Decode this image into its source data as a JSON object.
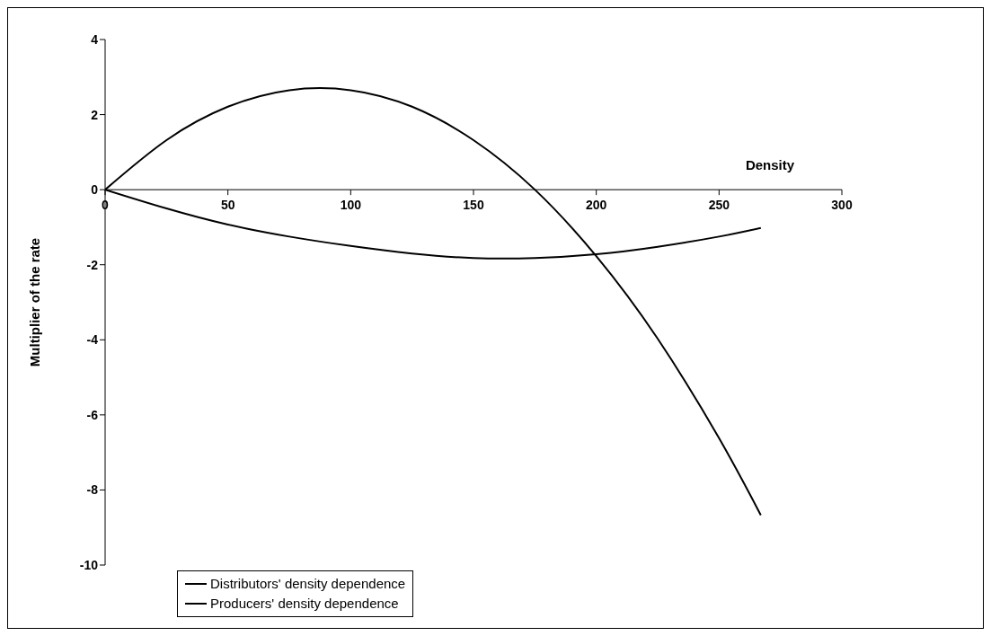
{
  "chart_data": {
    "type": "line",
    "xlabel": "Density",
    "ylabel": "Multiplier of the rate",
    "xlim": [
      0,
      300
    ],
    "xticks": [
      0,
      50,
      100,
      150,
      200,
      250,
      300
    ],
    "ylim": [
      -10,
      4
    ],
    "yticks": [
      -10,
      -8,
      -6,
      -4,
      -2,
      0,
      2,
      4
    ],
    "grid": false,
    "legend": "bottom left",
    "marker": "none",
    "line_style": "solid",
    "x": [
      0,
      25,
      50,
      75,
      100,
      125,
      150,
      175,
      200,
      225,
      250,
      267
    ],
    "series": [
      {
        "name": "Distributors' density dependence",
        "color": "#000000",
        "values": [
          0,
          1.32,
          2.21,
          2.65,
          2.65,
          2.21,
          1.32,
          0,
          -1.77,
          -3.97,
          -6.62,
          -8.67
        ]
      },
      {
        "name": "Producers' density dependence",
        "color": "#000000",
        "values": [
          0,
          -0.5,
          -0.93,
          -1.25,
          -1.5,
          -1.7,
          -1.82,
          -1.82,
          -1.72,
          -1.52,
          -1.25,
          -1.02
        ]
      }
    ]
  }
}
